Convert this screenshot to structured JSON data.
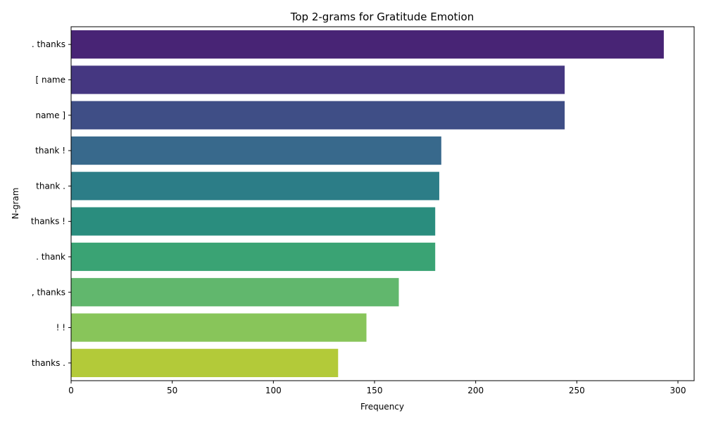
{
  "chart_data": {
    "type": "bar",
    "orientation": "horizontal",
    "title": "Top 2-grams for Gratitude Emotion",
    "xlabel": "Frequency",
    "ylabel": "N-gram",
    "categories": [
      ". thanks",
      "[ name",
      "name ]",
      "thank !",
      "thank .",
      "thanks !",
      ". thank",
      ", thanks",
      "! !",
      "thanks ."
    ],
    "values": [
      293,
      244,
      244,
      183,
      182,
      180,
      180,
      162,
      146,
      132
    ],
    "colors": [
      "#482475",
      "#453781",
      "#3f4e86",
      "#38698c",
      "#2c7d87",
      "#2a8d7e",
      "#3aa374",
      "#61b76d",
      "#88c55a",
      "#b3ca39"
    ],
    "xlim": [
      0,
      308
    ],
    "xticks": [
      0,
      50,
      100,
      150,
      200,
      250,
      300
    ],
    "grid": false,
    "legend": "none"
  }
}
